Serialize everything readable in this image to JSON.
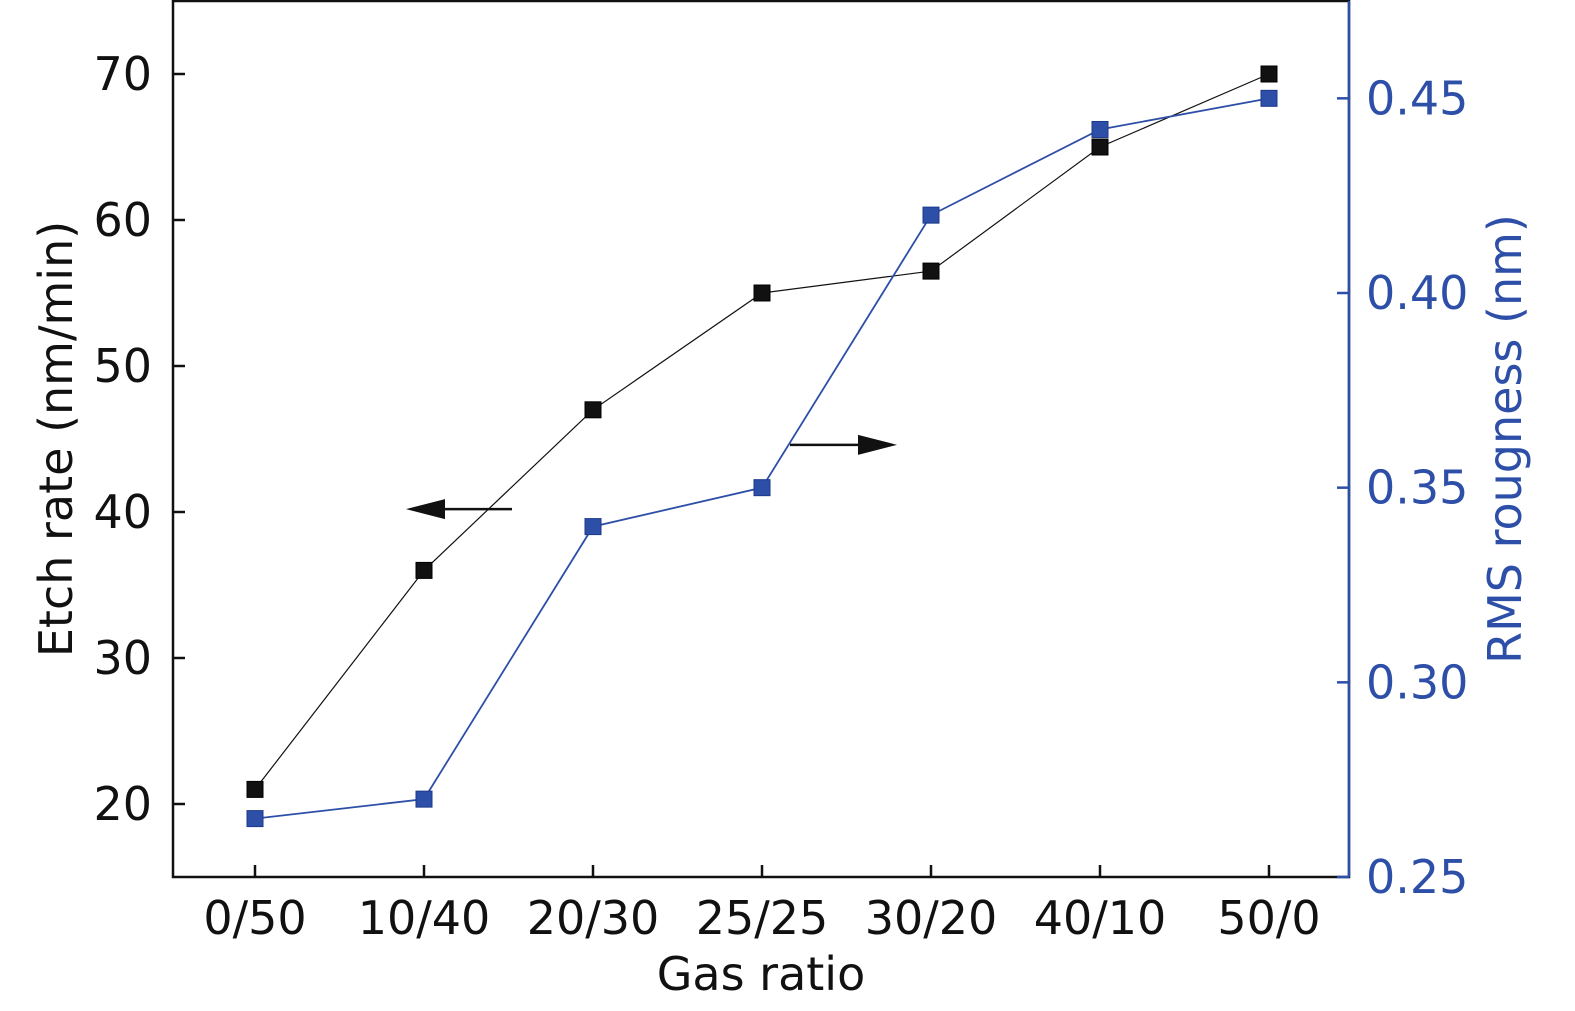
{
  "chart_data": {
    "type": "line",
    "categories": [
      "0/50",
      "10/40",
      "20/30",
      "25/25",
      "30/20",
      "40/10",
      "50/0"
    ],
    "xlabel": "Gas ratio",
    "ylabel": "Etch rate (nm/min)",
    "y2label": "RMS rougness (nm)",
    "ylim": [
      15,
      75
    ],
    "y2lim": [
      0.25,
      0.475
    ],
    "yticks": [
      "20",
      "30",
      "40",
      "50",
      "60",
      "70"
    ],
    "y2ticks": [
      "0.25",
      "0.30",
      "0.35",
      "0.40",
      "0.45"
    ],
    "grid": false,
    "series": [
      {
        "axis": "left",
        "color": "#111111",
        "values": [
          21,
          36,
          47,
          55,
          56.5,
          65,
          70
        ]
      },
      {
        "axis": "right",
        "color": "#2e4fa8",
        "values": [
          0.265,
          0.27,
          0.34,
          0.35,
          0.42,
          0.442,
          0.45
        ]
      }
    ],
    "annotations": [
      {
        "type": "arrow",
        "direction": "left",
        "points_to_axis": "left"
      },
      {
        "type": "arrow",
        "direction": "right",
        "points_to_axis": "right"
      }
    ]
  },
  "colors": {
    "left_axis": "#111111",
    "right_axis": "#2e4fa8"
  }
}
